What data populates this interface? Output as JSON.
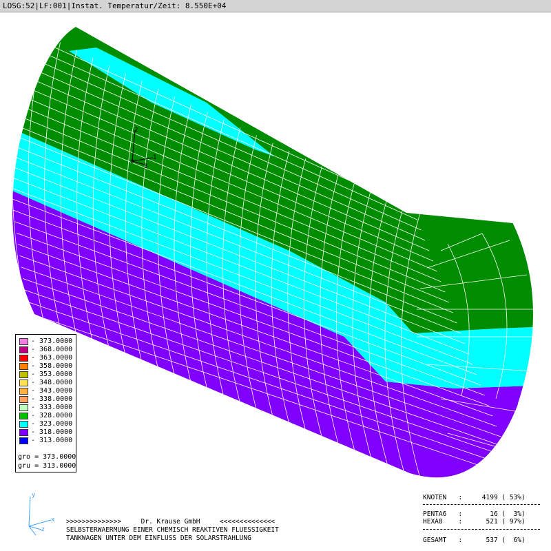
{
  "title_bar": "LOSG:52|LF:001|Instat. Temperatur/Zeit: 8.550E+04",
  "legend": {
    "entries": [
      {
        "value": "373.0000",
        "color": "#f07fe0"
      },
      {
        "value": "368.0000",
        "color": "#c0007f"
      },
      {
        "value": "363.0000",
        "color": "#ff0000"
      },
      {
        "value": "358.0000",
        "color": "#ff7f00"
      },
      {
        "value": "353.0000",
        "color": "#c0c000"
      },
      {
        "value": "348.0000",
        "color": "#ffe050"
      },
      {
        "value": "343.0000",
        "color": "#ffb040"
      },
      {
        "value": "338.0000",
        "color": "#ff9f60"
      },
      {
        "value": "333.0000",
        "color": "#bfffbf"
      },
      {
        "value": "328.0000",
        "color": "#00c000"
      },
      {
        "value": "323.0000",
        "color": "#00ffff"
      },
      {
        "value": "318.0000",
        "color": "#7f00ff"
      },
      {
        "value": "313.0000",
        "color": "#0000ff"
      }
    ],
    "gro": "gro = 373.0000",
    "gru": "gru = 313.0000"
  },
  "axes": {
    "model": {
      "a1": "1",
      "a2": "2",
      "a3": "3"
    },
    "global": {
      "y": "y",
      "x": "x",
      "z": "z"
    }
  },
  "footer": {
    "line1": ">>>>>>>>>>>>>>     Dr. Krause GmbH     <<<<<<<<<<<<<<",
    "line2": "SELBSTERWAERMUNG EINER CHEMISCH REAKTIVEN FLUESSIGKEIT",
    "line3": "TANKWAGEN UNTER DEM EINFLUSS DER SOLARSTRAHLUNG"
  },
  "stats": {
    "knoten": "KNOTEN   :     4199 ( 53%)",
    "penta": "PENTA6   :       16 (  3%)",
    "hexa": "HEXA8    :      521 ( 97%)",
    "gesamt": "GESAMT   :      537 (  6%)"
  },
  "colors": {
    "green": "#008c00",
    "cyan": "#00ffff",
    "purple": "#7f00ff",
    "grid": "#ffffff"
  }
}
